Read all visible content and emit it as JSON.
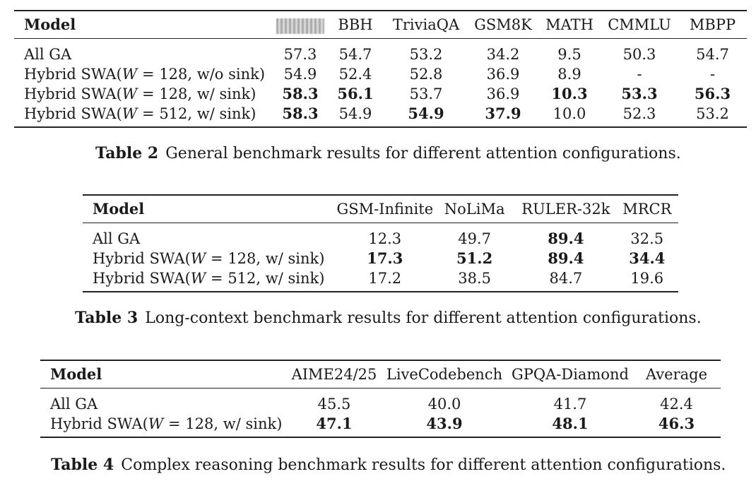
{
  "table2": {
    "header_model": "Model",
    "columns": [
      "",
      "BBH",
      "TriviaQA",
      "GSM8K",
      "MATH",
      "CMMLU",
      "MBPP"
    ],
    "rows": [
      {
        "prefix": "All GA",
        "w": "",
        "suffix": "",
        "values": [
          "57.3",
          "54.7",
          "53.2",
          "34.2",
          "9.5",
          "50.3",
          "54.7"
        ],
        "bold": [
          false,
          false,
          false,
          false,
          false,
          false,
          false
        ]
      },
      {
        "prefix": "Hybrid SWA(",
        "w": "W",
        "suffix": " = 128, w/o sink)",
        "values": [
          "54.9",
          "52.4",
          "52.8",
          "36.9",
          "8.9",
          "-",
          "-"
        ],
        "bold": [
          false,
          false,
          false,
          false,
          false,
          false,
          false
        ]
      },
      {
        "prefix": "Hybrid SWA(",
        "w": "W",
        "suffix": " = 128, w/ sink)",
        "values": [
          "58.3",
          "56.1",
          "53.7",
          "36.9",
          "10.3",
          "53.3",
          "56.3"
        ],
        "bold": [
          true,
          true,
          false,
          false,
          true,
          true,
          true
        ]
      },
      {
        "prefix": "Hybrid SWA(",
        "w": "W",
        "suffix": " = 512, w/ sink)",
        "values": [
          "58.3",
          "54.9",
          "54.9",
          "37.9",
          "10.0",
          "52.3",
          "53.2"
        ],
        "bold": [
          true,
          false,
          true,
          true,
          false,
          false,
          false
        ]
      }
    ],
    "caption_label": "Table 2",
    "caption_text": "General benchmark results for different attention configurations."
  },
  "table3": {
    "header_model": "Model",
    "columns": [
      "GSM-Infinite",
      "NoLiMa",
      "RULER-32k",
      "MRCR"
    ],
    "rows": [
      {
        "prefix": "All GA",
        "w": "",
        "suffix": "",
        "values": [
          "12.3",
          "49.7",
          "89.4",
          "32.5"
        ],
        "bold": [
          false,
          false,
          true,
          false
        ]
      },
      {
        "prefix": "Hybrid SWA(",
        "w": "W",
        "suffix": " = 128, w/ sink)",
        "values": [
          "17.3",
          "51.2",
          "89.4",
          "34.4"
        ],
        "bold": [
          true,
          true,
          true,
          true
        ]
      },
      {
        "prefix": "Hybrid SWA(",
        "w": "W",
        "suffix": " = 512, w/ sink)",
        "values": [
          "17.2",
          "38.5",
          "84.7",
          "19.6"
        ],
        "bold": [
          false,
          false,
          false,
          false
        ]
      }
    ],
    "caption_label": "Table 3",
    "caption_text": "Long-context benchmark results for different attention configurations."
  },
  "table4": {
    "header_model": "Model",
    "columns": [
      "AIME24/25",
      "LiveCodebench",
      "GPQA-Diamond",
      "Average"
    ],
    "rows": [
      {
        "prefix": "All GA",
        "w": "",
        "suffix": "",
        "values": [
          "45.5",
          "40.0",
          "41.7",
          "42.4"
        ],
        "bold": [
          false,
          false,
          false,
          false
        ]
      },
      {
        "prefix": "Hybrid SWA(",
        "w": "W",
        "suffix": " = 128, w/ sink)",
        "values": [
          "47.1",
          "43.9",
          "48.1",
          "46.3"
        ],
        "bold": [
          true,
          true,
          true,
          true
        ]
      }
    ],
    "caption_label": "Table 4",
    "caption_text": "Complex reasoning benchmark results for different attention configurations."
  }
}
